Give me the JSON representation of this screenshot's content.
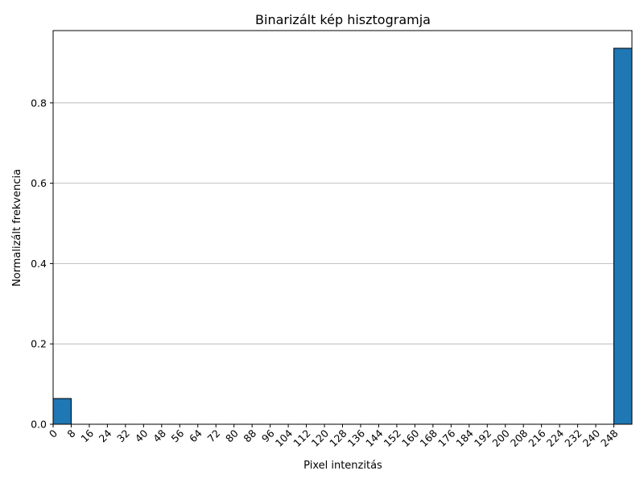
{
  "chart_data": {
    "type": "bar",
    "title": "Binarizált kép hisztogramja",
    "xlabel": "Pixel intenzitás",
    "ylabel": "Normalizált frekvencia",
    "bin_width": 8,
    "bins": [
      {
        "start": 0,
        "value": 0.064
      },
      {
        "start": 248,
        "value": 0.936
      }
    ],
    "xlim": [
      0,
      256
    ],
    "ylim": [
      0,
      0.98
    ],
    "x_ticks": [
      0,
      8,
      16,
      24,
      32,
      40,
      48,
      56,
      64,
      72,
      80,
      88,
      96,
      104,
      112,
      120,
      128,
      136,
      144,
      152,
      160,
      168,
      176,
      184,
      192,
      200,
      208,
      216,
      224,
      232,
      240,
      248
    ],
    "y_ticks": [
      "0.0",
      "0.2",
      "0.4",
      "0.6",
      "0.8"
    ],
    "y_tick_values": [
      0,
      0.2,
      0.4,
      0.6,
      0.8
    ],
    "grid": "y",
    "bar_color": "#1f77b4"
  }
}
